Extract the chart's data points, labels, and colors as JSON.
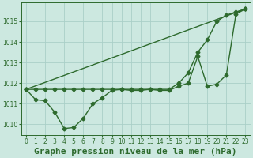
{
  "background_color": "#cce8e0",
  "grid_color": "#aacfc8",
  "line_color": "#2d6a2d",
  "title": "Graphe pression niveau de la mer (hPa)",
  "ylim": [
    1009.5,
    1015.9
  ],
  "xlim": [
    -0.5,
    23.5
  ],
  "yticks": [
    1010,
    1011,
    1012,
    1013,
    1014,
    1015
  ],
  "xticks": [
    0,
    1,
    2,
    3,
    4,
    5,
    6,
    7,
    8,
    9,
    10,
    11,
    12,
    13,
    14,
    15,
    16,
    17,
    18,
    19,
    20,
    21,
    22,
    23
  ],
  "series1_x": [
    0,
    23
  ],
  "series1_y": [
    1011.7,
    1015.6
  ],
  "series2_x": [
    0,
    1,
    2,
    3,
    4,
    5,
    6,
    7,
    8,
    9,
    10,
    11,
    12,
    13,
    14,
    15,
    16,
    17,
    18,
    19,
    20,
    21,
    22,
    23
  ],
  "series2_y": [
    1011.7,
    1011.7,
    1011.7,
    1011.7,
    1011.7,
    1011.7,
    1011.7,
    1011.7,
    1011.7,
    1011.7,
    1011.7,
    1011.7,
    1011.7,
    1011.7,
    1011.7,
    1011.7,
    1012.0,
    1012.5,
    1013.5,
    1014.1,
    1015.0,
    1015.3,
    1015.45,
    1015.6
  ],
  "series3_x": [
    0,
    1,
    2,
    3,
    4,
    5,
    6,
    7,
    8,
    9,
    10,
    11,
    12,
    13,
    14,
    15,
    16,
    17,
    18,
    19,
    20,
    21,
    22,
    23
  ],
  "series3_y": [
    1011.7,
    1011.2,
    1011.15,
    1010.6,
    1009.8,
    1009.85,
    1010.3,
    1011.0,
    1011.3,
    1011.65,
    1011.7,
    1011.65,
    1011.65,
    1011.7,
    1011.65,
    1011.65,
    1011.85,
    1012.0,
    1013.3,
    1011.85,
    1011.95,
    1012.4,
    1015.35,
    1015.6
  ],
  "title_fontsize": 8,
  "tick_fontsize": 5.5,
  "linewidth": 1.0,
  "markersize": 2.5
}
